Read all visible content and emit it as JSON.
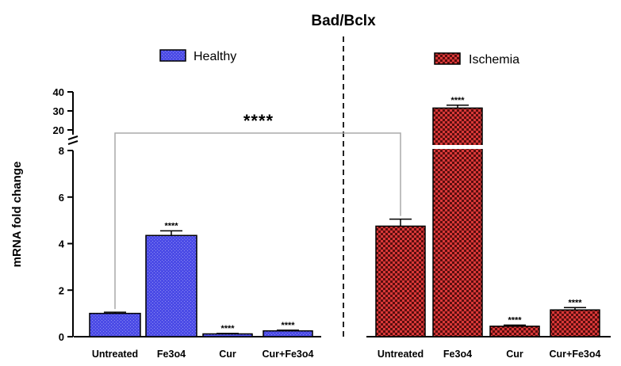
{
  "chart_data": {
    "type": "bar",
    "title": "Bad/Bclx",
    "ylabel": "mRNA fold change",
    "xlabel": "",
    "y_axis_broken": true,
    "y_segments": [
      {
        "range": [
          0,
          8
        ],
        "ticks": [
          0,
          2,
          4,
          6,
          8
        ]
      },
      {
        "range": [
          20,
          40
        ],
        "ticks": [
          20,
          30,
          40
        ]
      }
    ],
    "categories": [
      "Untreated",
      "Fe3o4",
      "Cur",
      "Cur+Fe3o4"
    ],
    "series": [
      {
        "name": "Healthy",
        "color": "#4b4be6",
        "pattern": "fine-dots",
        "values": [
          1.0,
          4.35,
          0.12,
          0.25
        ],
        "errors": [
          0.05,
          0.2,
          0.02,
          0.03
        ],
        "significance": [
          "",
          "****",
          "****",
          "****"
        ]
      },
      {
        "name": "Ischemia",
        "color": "#d93838",
        "pattern": "checkerboard",
        "values": [
          4.75,
          31.5,
          0.45,
          1.15
        ],
        "errors": [
          0.3,
          1.5,
          0.05,
          0.1
        ],
        "significance": [
          "",
          "****",
          "****",
          "****"
        ]
      }
    ],
    "comparison": {
      "from": {
        "series": "Healthy",
        "category": "Untreated"
      },
      "to": {
        "series": "Ischemia",
        "category": "Untreated"
      },
      "label": "****"
    },
    "legend_placement": "above each group",
    "grid": false
  }
}
